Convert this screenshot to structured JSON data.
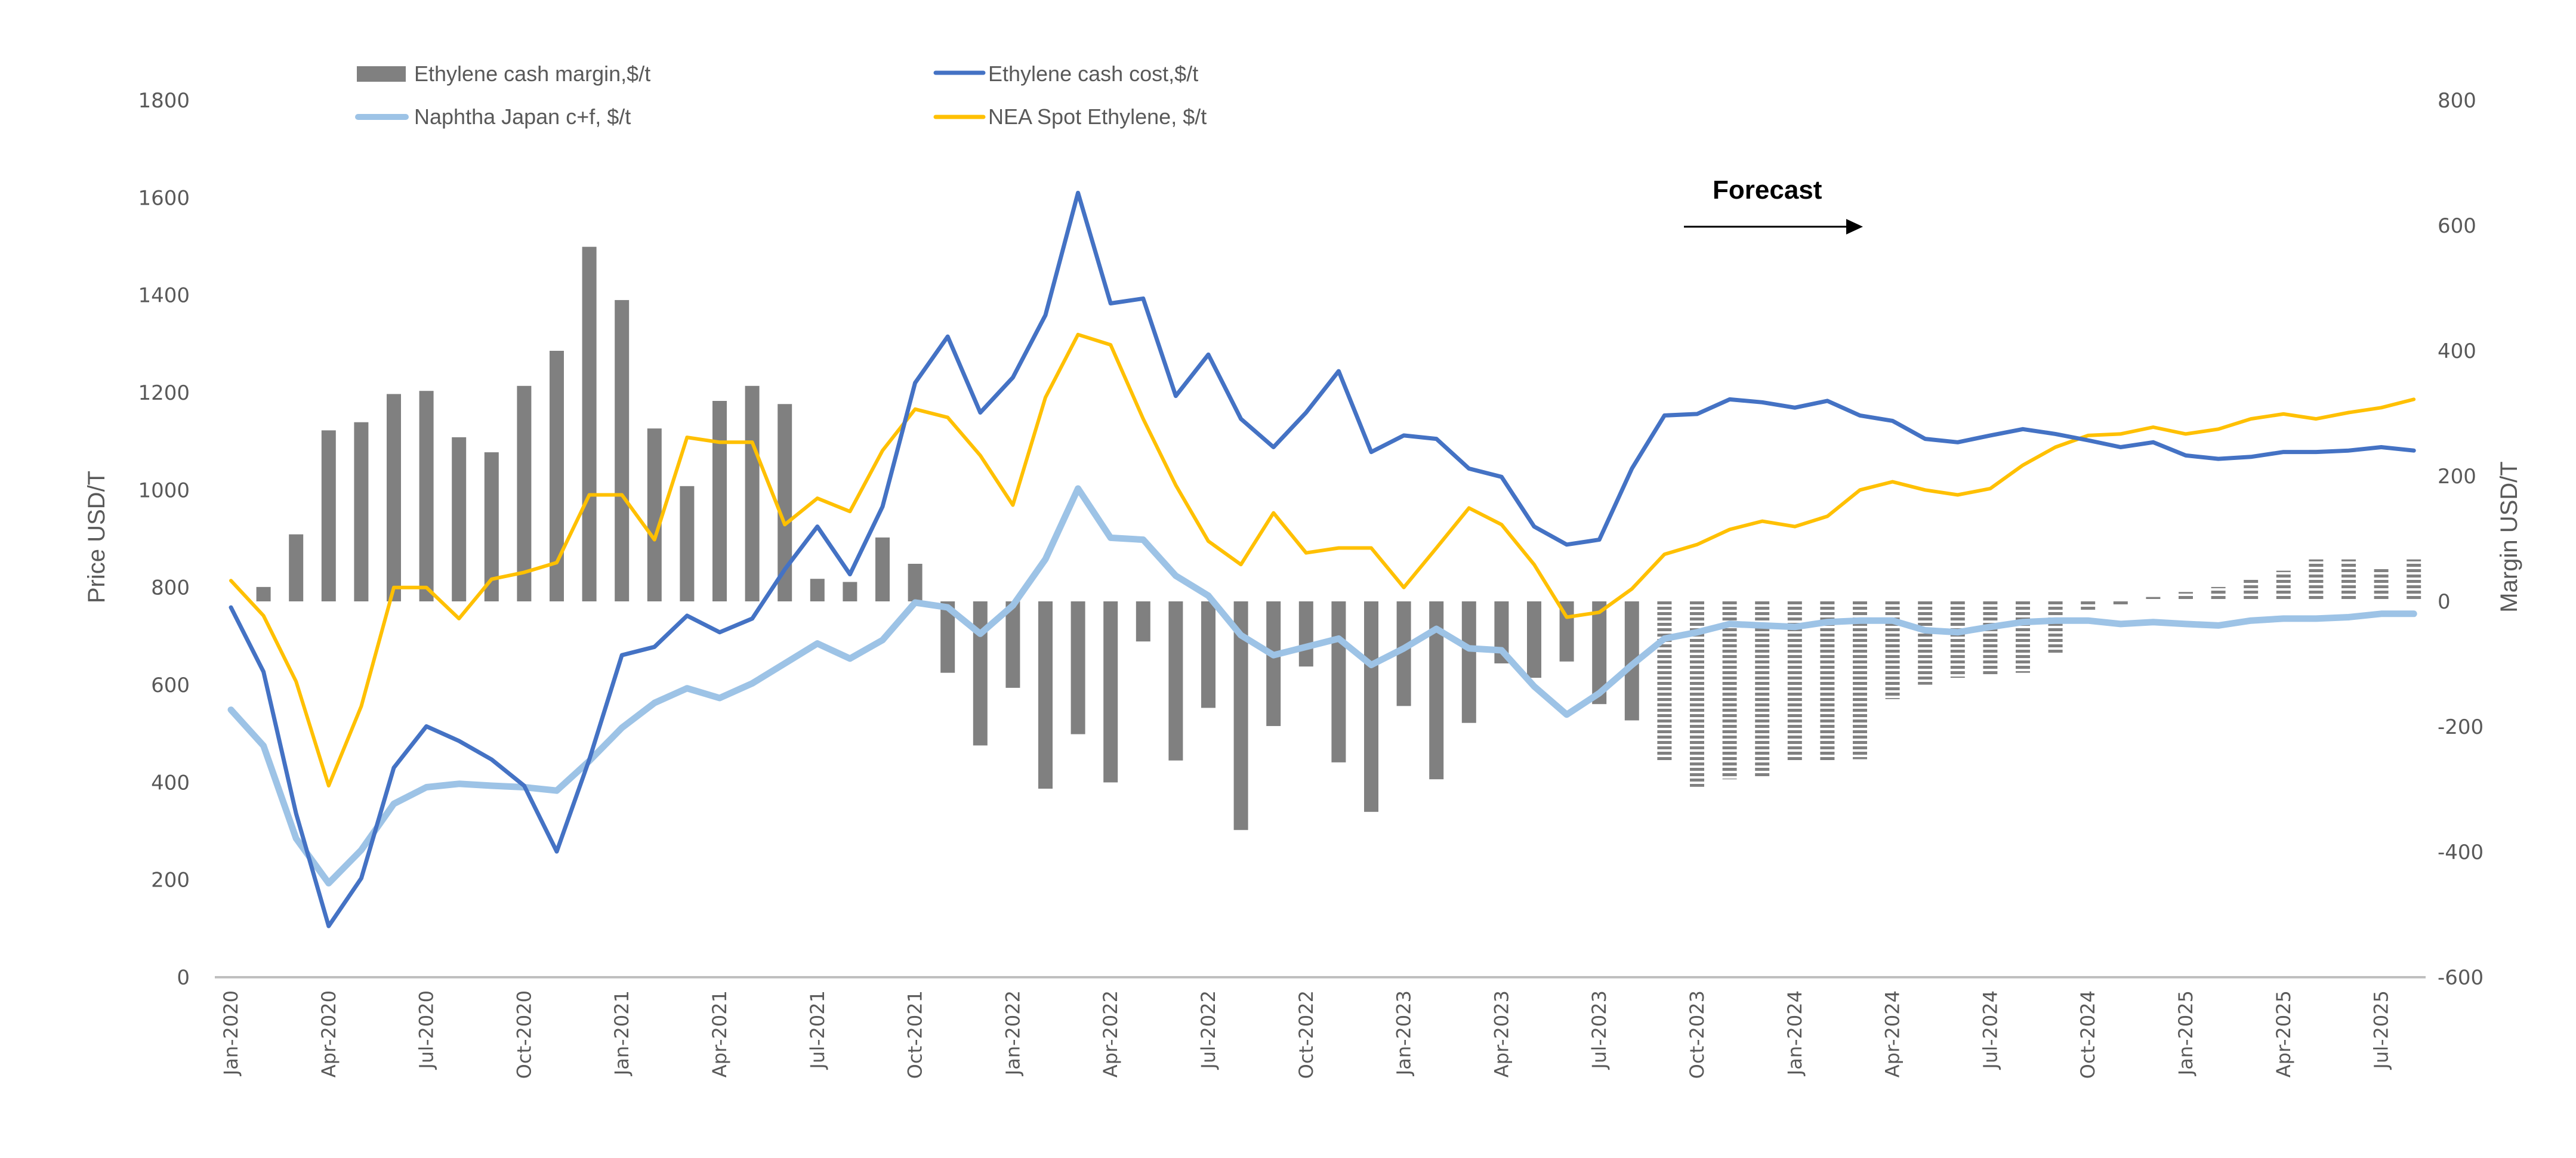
{
  "chart_data": {
    "type": "bar+line",
    "title": "",
    "xlabel": "",
    "ylabel_left": "Price USD/T",
    "ylabel_right": "Margin USD/T",
    "ylim_left": [
      0,
      1800
    ],
    "ylim_right": [
      -600,
      800
    ],
    "yticks_left": [
      "0",
      "200",
      "400",
      "600",
      "800",
      "1000",
      "1200",
      "1400",
      "1600",
      "1800"
    ],
    "yticks_right": [
      "-600",
      "-400",
      "-200",
      "0",
      "200",
      "400",
      "600",
      "800"
    ],
    "yticks_left_values": [
      0,
      200,
      400,
      600,
      800,
      1000,
      1200,
      1400,
      1600,
      1800
    ],
    "yticks_right_values": [
      -600,
      -400,
      -200,
      0,
      200,
      400,
      600,
      800
    ],
    "grid": false,
    "legend_position": "top",
    "x": [
      "Jan-2020",
      "Feb-2020",
      "Mar-2020",
      "Apr-2020",
      "May-2020",
      "Jun-2020",
      "Jul-2020",
      "Aug-2020",
      "Sep-2020",
      "Oct-2020",
      "Nov-2020",
      "Dec-2020",
      "Jan-2021",
      "Feb-2021",
      "Mar-2021",
      "Apr-2021",
      "May-2021",
      "Jun-2021",
      "Jul-2021",
      "Aug-2021",
      "Sep-2021",
      "Oct-2021",
      "Nov-2021",
      "Dec-2021",
      "Jan-2022",
      "Feb-2022",
      "Mar-2022",
      "Apr-2022",
      "May-2022",
      "Jun-2022",
      "Jul-2022",
      "Aug-2022",
      "Sep-2022",
      "Oct-2022",
      "Nov-2022",
      "Dec-2022",
      "Jan-2023",
      "Feb-2023",
      "Mar-2023",
      "Apr-2023",
      "May-2023",
      "Jun-2023",
      "Jul-2023",
      "Aug-2023",
      "Sep-2023",
      "Oct-2023",
      "Nov-2023",
      "Dec-2023",
      "Jan-2024",
      "Feb-2024",
      "Mar-2024",
      "Apr-2024",
      "May-2024",
      "Jun-2024",
      "Jul-2024",
      "Aug-2024",
      "Sep-2024",
      "Oct-2024",
      "Nov-2024",
      "Dec-2024",
      "Jan-2025",
      "Feb-2025",
      "Mar-2025",
      "Apr-2025",
      "May-2025",
      "Jun-2025",
      "Jul-2025",
      "Aug-2025"
    ],
    "xtick_labels": [
      "Jan-2020",
      "Apr-2020",
      "Jul-2020",
      "Oct-2020",
      "Jan-2021",
      "Apr-2021",
      "Jul-2021",
      "Oct-2021",
      "Jan-2022",
      "Apr-2022",
      "Jul-2022",
      "Oct-2022",
      "Jan-2023",
      "Apr-2023",
      "Jul-2023",
      "Oct-2023",
      "Jan-2024",
      "Apr-2024",
      "Jul-2024",
      "Oct-2024",
      "Jan-2025",
      "Apr-2025",
      "Jul-2025"
    ],
    "forecast_start": "Sep-2023",
    "annotation": "Forecast",
    "series": [
      {
        "name": "Ethylene cash margin,$/t",
        "type": "bar",
        "axis": "right",
        "color": "#808080",
        "values": [
          null,
          23,
          107,
          273,
          286,
          331,
          336,
          262,
          238,
          344,
          400,
          566,
          481,
          276,
          184,
          320,
          344,
          315,
          36,
          31,
          102,
          60,
          -114,
          -230,
          -138,
          -299,
          -212,
          -289,
          -64,
          -254,
          -170,
          -365,
          -199,
          -104,
          -257,
          -336,
          -167,
          -284,
          -194,
          -99,
          -122,
          -96,
          -164,
          -190,
          -257,
          -296,
          -284,
          -281,
          -254,
          -254,
          -252,
          -156,
          -133,
          -122,
          -117,
          -114,
          -83,
          -14,
          -6,
          7,
          15,
          23,
          38,
          49,
          67,
          67,
          52,
          67
        ]
      },
      {
        "name": "Ethylene cash cost,$/t",
        "type": "line",
        "axis": "left",
        "color": "#4472C4",
        "values": [
          759,
          627,
          336,
          105,
          203,
          430,
          515,
          485,
          447,
          393,
          258,
          447,
          661,
          678,
          742,
          708,
          736,
          837,
          925,
          827,
          966,
          1220,
          1315,
          1159,
          1231,
          1359,
          1610,
          1383,
          1393,
          1193,
          1278,
          1146,
          1088,
          1159,
          1244,
          1078,
          1112,
          1105,
          1044,
          1027,
          925,
          888,
          898,
          1044,
          1153,
          1156,
          1186,
          1180,
          1169,
          1183,
          1153,
          1142,
          1105,
          1098,
          1112,
          1125,
          1115,
          1102,
          1088,
          1098,
          1071,
          1064,
          1068,
          1078,
          1078,
          1081,
          1088,
          1081
        ]
      },
      {
        "name": "Naphtha Japan c+f, $/t",
        "type": "line",
        "axis": "left",
        "color": "#9DC3E6",
        "values": [
          549,
          475,
          285,
          193,
          261,
          356,
          390,
          397,
          393,
          390,
          383,
          444,
          512,
          563,
          593,
          573,
          603,
          644,
          685,
          654,
          692,
          769,
          759,
          705,
          763,
          858,
          1003,
          902,
          898,
          824,
          783,
          702,
          661,
          678,
          695,
          641,
          675,
          715,
          675,
          671,
          597,
          539,
          583,
          641,
          695,
          708,
          725,
          722,
          719,
          729,
          732,
          732,
          712,
          708,
          719,
          729,
          732,
          732,
          725,
          729,
          725,
          722,
          732,
          736,
          736,
          739,
          746,
          746
        ]
      },
      {
        "name": "NEA Spot Ethylene, $/t",
        "type": "line",
        "axis": "left",
        "color": "#FFC000",
        "values": [
          814,
          742,
          607,
          393,
          556,
          800,
          800,
          736,
          817,
          831,
          851,
          990,
          990,
          898,
          1108,
          1098,
          1098,
          929,
          983,
          956,
          1081,
          1166,
          1149,
          1071,
          969,
          1190,
          1319,
          1298,
          1146,
          1010,
          895,
          847,
          953,
          871,
          881,
          881,
          800,
          881,
          963,
          929,
          847,
          739,
          749,
          797,
          868,
          888,
          919,
          936,
          925,
          946,
          1000,
          1017,
          1000,
          990,
          1003,
          1051,
          1088,
          1112,
          1115,
          1129,
          1115,
          1125,
          1146,
          1156,
          1146,
          1159,
          1169,
          1186
        ]
      }
    ]
  }
}
